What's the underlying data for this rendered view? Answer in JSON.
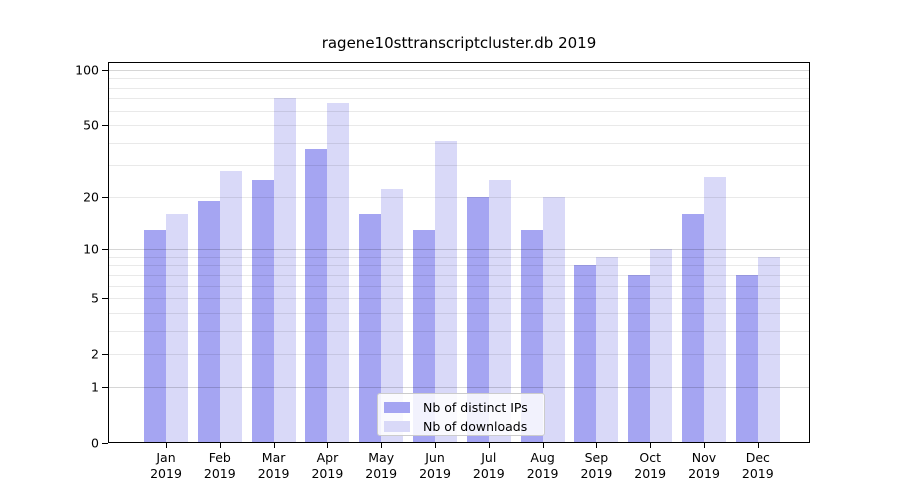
{
  "title": "ragene10sttranscriptcluster.db 2019",
  "chart_data": {
    "type": "bar",
    "title": "ragene10sttranscriptcluster.db 2019",
    "year_label": "2019",
    "categories": [
      "Jan",
      "Feb",
      "Mar",
      "Apr",
      "May",
      "Jun",
      "Jul",
      "Aug",
      "Sep",
      "Oct",
      "Nov",
      "Dec"
    ],
    "series": [
      {
        "name": "Nb of distinct IPs",
        "color": "#a5a5f2",
        "values": [
          13,
          19,
          25,
          37,
          16,
          13,
          20,
          13,
          8,
          7,
          16,
          7
        ]
      },
      {
        "name": "Nb of downloads",
        "color": "#d9d9f8",
        "values": [
          16,
          28,
          70,
          66,
          22,
          41,
          25,
          20,
          9,
          10,
          26,
          9
        ]
      }
    ],
    "xlabel": "",
    "ylabel": "",
    "yscale": "log1p",
    "ylim": [
      0,
      110
    ],
    "yticks": [
      100,
      50,
      20,
      10,
      5,
      2,
      1,
      0
    ],
    "grid": "on",
    "grid_lines": {
      "major": [
        1,
        10,
        100
      ],
      "minor": [
        2,
        3,
        4,
        5,
        6,
        7,
        8,
        9,
        20,
        30,
        40,
        50,
        60,
        70,
        80,
        90
      ]
    },
    "legend_position": "lower-center-inside"
  },
  "legend": {
    "items": [
      {
        "label": "Nb of distinct IPs",
        "color": "#a5a5f2"
      },
      {
        "label": "Nb of downloads",
        "color": "#d9d9f8"
      }
    ]
  }
}
